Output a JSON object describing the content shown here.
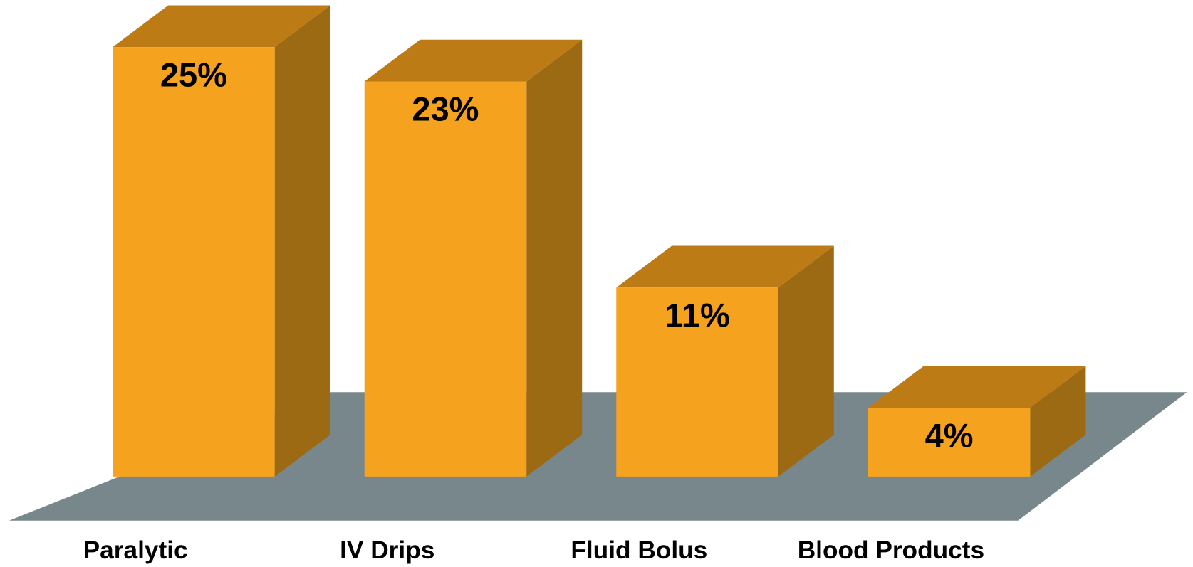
{
  "chart_data": {
    "type": "bar3d",
    "categories": [
      "Paralytic",
      "IV Drips",
      "Fluid Bolus",
      "Blood Products"
    ],
    "values": [
      25,
      23,
      11,
      4
    ],
    "value_labels": [
      "25%",
      "23%",
      "11%",
      "4%"
    ],
    "color": "#f5a21f"
  }
}
